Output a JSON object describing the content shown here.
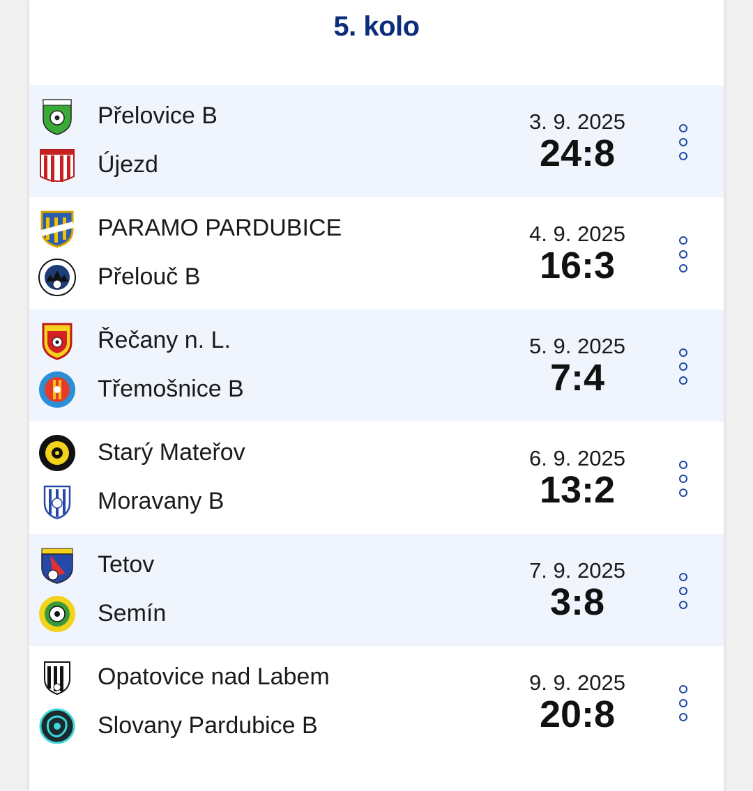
{
  "round": {
    "title": "5. kolo"
  },
  "matches": [
    {
      "home": {
        "name": "Přelovice B",
        "logo": "prelovice-logo"
      },
      "away": {
        "name": "Újezd",
        "logo": "ujezd-logo"
      },
      "date": "3. 9. 2025",
      "score": "24:8"
    },
    {
      "home": {
        "name": "PARAMO PARDUBICE",
        "logo": "paramo-logo"
      },
      "away": {
        "name": "Přelouč B",
        "logo": "prelouc-logo"
      },
      "date": "4. 9. 2025",
      "score": "16:3"
    },
    {
      "home": {
        "name": "Řečany n. L.",
        "logo": "recany-logo"
      },
      "away": {
        "name": "Třemošnice B",
        "logo": "tremosnice-logo"
      },
      "date": "5. 9. 2025",
      "score": "7:4"
    },
    {
      "home": {
        "name": "Starý Mateřov",
        "logo": "stary-materov-logo"
      },
      "away": {
        "name": "Moravany B",
        "logo": "moravany-logo"
      },
      "date": "6. 9. 2025",
      "score": "13:2"
    },
    {
      "home": {
        "name": "Tetov",
        "logo": "tetov-logo"
      },
      "away": {
        "name": "Semín",
        "logo": "semin-logo"
      },
      "date": "7. 9. 2025",
      "score": "3:8"
    },
    {
      "home": {
        "name": "Opatovice nad Labem",
        "logo": "opatovice-logo"
      },
      "away": {
        "name": "Slovany Pardubice B",
        "logo": "slovany-logo"
      },
      "date": "9. 9. 2025",
      "score": "20:8"
    }
  ],
  "colors": {
    "accent": "#0c2d7a",
    "altRow": "#f0f5fd",
    "menuDots": "#1c4aa6"
  }
}
